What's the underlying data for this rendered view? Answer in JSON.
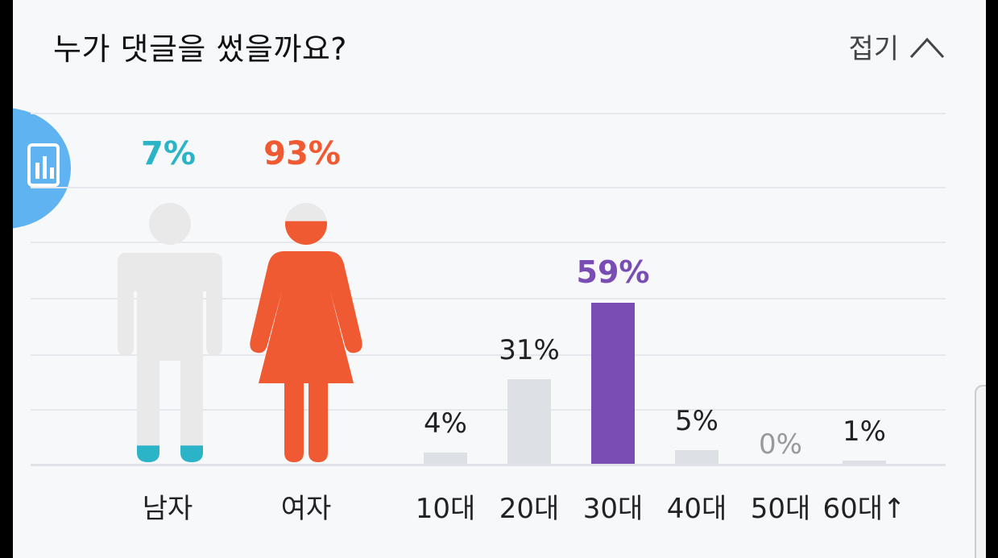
{
  "header": {
    "title": "누가 댓글을 썼을까요?",
    "collapse_label": "접기"
  },
  "side_button": {
    "icon": "chart-icon"
  },
  "chart_data": [
    {
      "type": "pictogram",
      "categories": [
        "남자",
        "여자"
      ],
      "values": [
        7,
        93
      ],
      "value_labels": [
        "7%",
        "93%"
      ],
      "colors": [
        "#2bb3c7",
        "#f05a32"
      ]
    },
    {
      "type": "bar",
      "categories": [
        "10대",
        "20대",
        "30대",
        "40대",
        "50대",
        "60대↑"
      ],
      "values": [
        4,
        31,
        59,
        5,
        0,
        1
      ],
      "value_labels": [
        "4%",
        "31%",
        "59%",
        "5%",
        "0%",
        "1%"
      ],
      "ylim": [
        0,
        100
      ],
      "highlight_index": 2,
      "colors": {
        "default": "#dde0e5",
        "highlight": "#7a4db5",
        "label": "#222222",
        "highlight_label": "#7a4db5",
        "zero_label": "#999999"
      }
    }
  ]
}
